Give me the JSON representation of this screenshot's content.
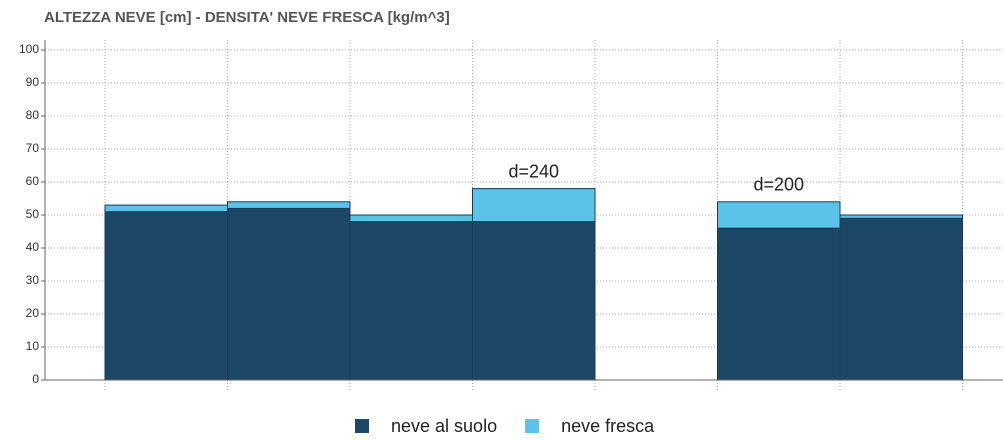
{
  "chart_data": {
    "type": "stacked_step_bar",
    "title": "ALTEZZA NEVE [cm] - DENSITA' NEVE FRESCA [kg/m^3]",
    "categories": [
      null,
      null,
      null,
      null,
      null,
      null,
      null
    ],
    "series": [
      {
        "name": "neve al suolo",
        "color": "#1c4766",
        "values": [
          51,
          52,
          48,
          48,
          null,
          46,
          49
        ]
      },
      {
        "name": "neve fresca",
        "color": "#5bc2ea",
        "values": [
          2,
          2,
          2,
          10,
          null,
          8,
          1
        ]
      }
    ],
    "annotations": [
      null,
      null,
      null,
      "d=240",
      null,
      "d=200",
      null
    ],
    "ylim": [
      0,
      100
    ],
    "yticks": [
      0,
      10,
      20,
      30,
      40,
      50,
      60,
      70,
      80,
      90,
      100
    ],
    "grid": true,
    "legend": "bottom"
  }
}
